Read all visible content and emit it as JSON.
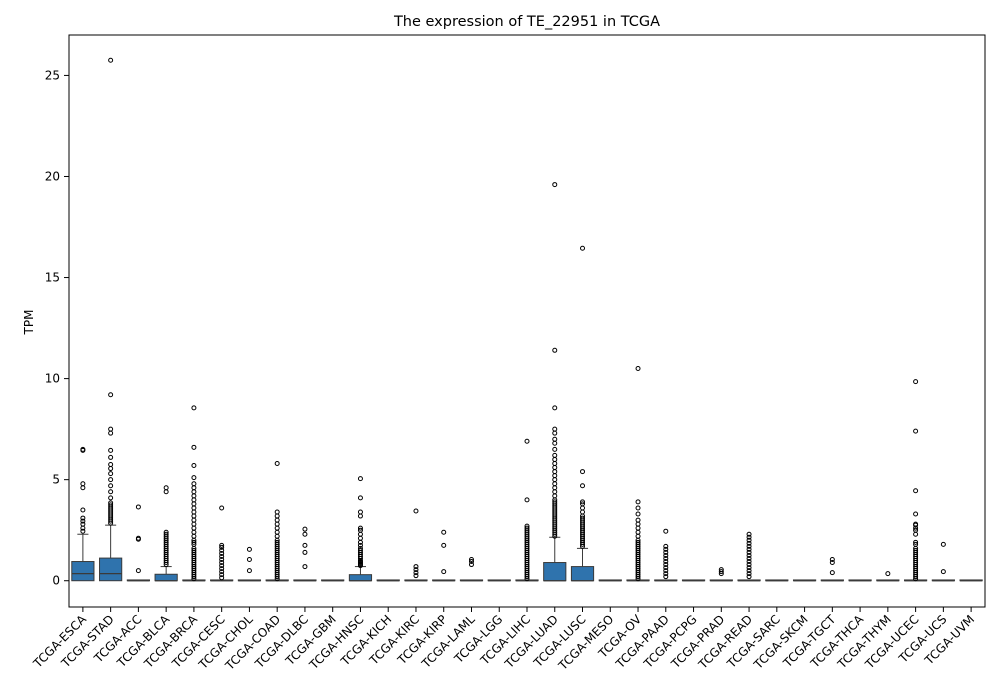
{
  "chart_data": {
    "type": "box",
    "title": "The expression of TE_22951 in TCGA",
    "xlabel": "",
    "ylabel": "TPM",
    "ylim": [
      -1.3,
      27
    ],
    "yticks": [
      0,
      5,
      10,
      15,
      20,
      25
    ],
    "grid": false,
    "legend": "none",
    "box_color": "#2f73ad",
    "edge_color": "#3a3a3a",
    "categories": [
      "TCGA-ESCA",
      "TCGA-STAD",
      "TCGA-ACC",
      "TCGA-BLCA",
      "TCGA-BRCA",
      "TCGA-CESC",
      "TCGA-CHOL",
      "TCGA-COAD",
      "TCGA-DLBC",
      "TCGA-GBM",
      "TCGA-HNSC",
      "TCGA-KICH",
      "TCGA-KIRC",
      "TCGA-KIRP",
      "TCGA-LAML",
      "TCGA-LGG",
      "TCGA-LIHC",
      "TCGA-LUAD",
      "TCGA-LUSC",
      "TCGA-MESO",
      "TCGA-OV",
      "TCGA-PAAD",
      "TCGA-PCPG",
      "TCGA-PRAD",
      "TCGA-READ",
      "TCGA-SARC",
      "TCGA-SKCM",
      "TCGA-TGCT",
      "TCGA-THCA",
      "TCGA-THYM",
      "TCGA-UCEC",
      "TCGA-UCS",
      "TCGA-UVM"
    ],
    "boxes": [
      {
        "q1": 0,
        "median": 0.35,
        "q3": 0.95,
        "whisker_low": 0,
        "whisker_high": 2.3,
        "outliers": [
          2.45,
          2.6,
          2.8,
          2.95,
          3.1,
          3.5,
          4.6,
          4.8,
          6.45,
          6.5
        ]
      },
      {
        "q1": 0,
        "median": 0.35,
        "q3": 1.12,
        "whisker_low": 0,
        "whisker_high": 2.75,
        "outliers": [
          2.85,
          2.95,
          3.05,
          3.15,
          3.25,
          3.35,
          3.45,
          3.55,
          3.65,
          3.75,
          3.85,
          4.1,
          4.4,
          4.7,
          5.0,
          5.3,
          5.55,
          5.75,
          6.1,
          6.45,
          7.3,
          7.5,
          9.2,
          25.75
        ]
      },
      {
        "q1": 0,
        "median": 0,
        "q3": 0,
        "whisker_low": 0,
        "whisker_high": 0,
        "outliers": [
          0.5,
          2.05,
          2.1,
          3.65
        ]
      },
      {
        "q1": 0,
        "median": 0,
        "q3": 0.32,
        "whisker_low": 0,
        "whisker_high": 0.7,
        "outliers": [
          0.8,
          0.9,
          1.0,
          1.1,
          1.2,
          1.3,
          1.4,
          1.5,
          1.6,
          1.7,
          1.8,
          1.9,
          2.0,
          2.1,
          2.2,
          2.3,
          2.4,
          4.4,
          4.6
        ]
      },
      {
        "q1": 0,
        "median": 0,
        "q3": 0,
        "whisker_low": 0,
        "whisker_high": 0,
        "outliers": [
          0.1,
          0.2,
          0.3,
          0.4,
          0.5,
          0.6,
          0.7,
          0.8,
          0.9,
          1.0,
          1.1,
          1.2,
          1.3,
          1.4,
          1.5,
          1.6,
          1.8,
          1.9,
          2.0,
          2.2,
          2.4,
          2.6,
          2.8,
          3.0,
          3.2,
          3.4,
          3.6,
          3.8,
          4.0,
          4.2,
          4.4,
          4.6,
          4.8,
          5.1,
          5.7,
          6.6,
          8.55
        ]
      },
      {
        "q1": 0,
        "median": 0,
        "q3": 0,
        "whisker_low": 0,
        "whisker_high": 0,
        "outliers": [
          0.15,
          0.3,
          0.45,
          0.6,
          0.75,
          0.9,
          1.05,
          1.2,
          1.35,
          1.5,
          1.65,
          1.75,
          3.6
        ]
      },
      {
        "q1": 0,
        "median": 0,
        "q3": 0,
        "whisker_low": 0,
        "whisker_high": 0,
        "outliers": [
          0.5,
          1.05,
          1.55
        ]
      },
      {
        "q1": 0,
        "median": 0,
        "q3": 0,
        "whisker_low": 0,
        "whisker_high": 0,
        "outliers": [
          0.1,
          0.2,
          0.3,
          0.4,
          0.5,
          0.6,
          0.7,
          0.8,
          0.9,
          1.0,
          1.1,
          1.2,
          1.3,
          1.4,
          1.5,
          1.6,
          1.7,
          1.8,
          1.9,
          2.0,
          2.2,
          2.4,
          2.6,
          2.8,
          3.0,
          3.2,
          3.4,
          5.8
        ]
      },
      {
        "q1": 0,
        "median": 0,
        "q3": 0,
        "whisker_low": 0,
        "whisker_high": 0,
        "outliers": [
          0.7,
          1.4,
          1.75,
          2.3,
          2.55
        ]
      },
      {
        "q1": 0,
        "median": 0,
        "q3": 0,
        "whisker_low": 0,
        "whisker_high": 0,
        "outliers": []
      },
      {
        "q1": 0,
        "median": 0,
        "q3": 0.3,
        "whisker_low": 0,
        "whisker_high": 0.7,
        "outliers": [
          0.75,
          0.8,
          0.85,
          0.9,
          0.95,
          1.0,
          1.1,
          1.2,
          1.3,
          1.4,
          1.5,
          1.6,
          1.75,
          1.9,
          2.1,
          2.3,
          2.5,
          2.6,
          3.2,
          3.4,
          4.1,
          5.05
        ]
      },
      {
        "q1": 0,
        "median": 0,
        "q3": 0,
        "whisker_low": 0,
        "whisker_high": 0,
        "outliers": []
      },
      {
        "q1": 0,
        "median": 0,
        "q3": 0,
        "whisker_low": 0,
        "whisker_high": 0,
        "outliers": [
          0.25,
          0.4,
          0.55,
          0.7,
          3.45
        ]
      },
      {
        "q1": 0,
        "median": 0,
        "q3": 0,
        "whisker_low": 0,
        "whisker_high": 0,
        "outliers": [
          0.45,
          1.75,
          2.4
        ]
      },
      {
        "q1": 0,
        "median": 0,
        "q3": 0,
        "whisker_low": 0,
        "whisker_high": 0,
        "outliers": [
          0.8,
          0.95,
          1.05
        ]
      },
      {
        "q1": 0,
        "median": 0,
        "q3": 0,
        "whisker_low": 0,
        "whisker_high": 0,
        "outliers": []
      },
      {
        "q1": 0,
        "median": 0,
        "q3": 0,
        "whisker_low": 0,
        "whisker_high": 0,
        "outliers": [
          0.1,
          0.2,
          0.3,
          0.4,
          0.5,
          0.6,
          0.7,
          0.8,
          0.9,
          1.0,
          1.1,
          1.2,
          1.3,
          1.4,
          1.5,
          1.6,
          1.7,
          1.8,
          1.9,
          2.0,
          2.1,
          2.2,
          2.3,
          2.4,
          2.5,
          2.6,
          2.7,
          4.0,
          6.9
        ]
      },
      {
        "q1": 0,
        "median": 0,
        "q3": 0.9,
        "whisker_low": 0,
        "whisker_high": 2.15,
        "outliers": [
          2.2,
          2.3,
          2.4,
          2.5,
          2.6,
          2.7,
          2.8,
          2.9,
          3.0,
          3.1,
          3.2,
          3.3,
          3.4,
          3.5,
          3.6,
          3.7,
          3.8,
          3.9,
          4.0,
          4.2,
          4.4,
          4.6,
          4.8,
          5.0,
          5.2,
          5.4,
          5.6,
          5.8,
          6.0,
          6.2,
          6.5,
          6.8,
          7.0,
          7.3,
          7.5,
          8.55,
          11.4,
          19.6
        ]
      },
      {
        "q1": 0,
        "median": 0,
        "q3": 0.7,
        "whisker_low": 0,
        "whisker_high": 1.6,
        "outliers": [
          1.7,
          1.8,
          1.9,
          2.0,
          2.1,
          2.2,
          2.3,
          2.4,
          2.5,
          2.6,
          2.7,
          2.8,
          2.9,
          3.0,
          3.1,
          3.2,
          3.4,
          3.6,
          3.8,
          3.9,
          4.7,
          5.4,
          16.45
        ]
      },
      {
        "q1": 0,
        "median": 0,
        "q3": 0,
        "whisker_low": 0,
        "whisker_high": 0,
        "outliers": []
      },
      {
        "q1": 0,
        "median": 0,
        "q3": 0,
        "whisker_low": 0,
        "whisker_high": 0,
        "outliers": [
          0.1,
          0.2,
          0.3,
          0.4,
          0.5,
          0.6,
          0.7,
          0.8,
          0.9,
          1.0,
          1.1,
          1.2,
          1.3,
          1.4,
          1.5,
          1.6,
          1.7,
          1.8,
          1.9,
          2.0,
          2.2,
          2.4,
          2.6,
          2.8,
          3.0,
          3.3,
          3.6,
          3.9,
          10.5
        ]
      },
      {
        "q1": 0,
        "median": 0,
        "q3": 0,
        "whisker_low": 0,
        "whisker_high": 0,
        "outliers": [
          0.2,
          0.35,
          0.5,
          0.65,
          0.8,
          0.95,
          1.1,
          1.25,
          1.4,
          1.55,
          1.7,
          2.45
        ]
      },
      {
        "q1": 0,
        "median": 0,
        "q3": 0,
        "whisker_low": 0,
        "whisker_high": 0,
        "outliers": []
      },
      {
        "q1": 0,
        "median": 0,
        "q3": 0,
        "whisker_low": 0,
        "whisker_high": 0,
        "outliers": [
          0.35,
          0.45,
          0.55
        ]
      },
      {
        "q1": 0,
        "median": 0,
        "q3": 0,
        "whisker_low": 0,
        "whisker_high": 0,
        "outliers": [
          0.2,
          0.35,
          0.5,
          0.65,
          0.8,
          0.95,
          1.1,
          1.25,
          1.4,
          1.55,
          1.7,
          1.85,
          2.0,
          2.15,
          2.3
        ]
      },
      {
        "q1": 0,
        "median": 0,
        "q3": 0,
        "whisker_low": 0,
        "whisker_high": 0,
        "outliers": []
      },
      {
        "q1": 0,
        "median": 0,
        "q3": 0,
        "whisker_low": 0,
        "whisker_high": 0,
        "outliers": []
      },
      {
        "q1": 0,
        "median": 0,
        "q3": 0,
        "whisker_low": 0,
        "whisker_high": 0,
        "outliers": [
          0.4,
          0.9,
          1.05
        ]
      },
      {
        "q1": 0,
        "median": 0,
        "q3": 0,
        "whisker_low": 0,
        "whisker_high": 0,
        "outliers": []
      },
      {
        "q1": 0,
        "median": 0,
        "q3": 0,
        "whisker_low": 0,
        "whisker_high": 0,
        "outliers": [
          0.35
        ]
      },
      {
        "q1": 0,
        "median": 0,
        "q3": 0,
        "whisker_low": 0,
        "whisker_high": 0,
        "outliers": [
          0.1,
          0.2,
          0.3,
          0.4,
          0.5,
          0.6,
          0.7,
          0.8,
          0.9,
          1.0,
          1.1,
          1.2,
          1.3,
          1.4,
          1.5,
          1.6,
          1.8,
          1.9,
          2.3,
          2.5,
          2.6,
          2.75,
          2.8,
          3.3,
          4.45,
          7.4,
          9.85
        ]
      },
      {
        "q1": 0,
        "median": 0,
        "q3": 0,
        "whisker_low": 0,
        "whisker_high": 0,
        "outliers": [
          0.45,
          1.8
        ]
      },
      {
        "q1": 0,
        "median": 0,
        "q3": 0,
        "whisker_low": 0,
        "whisker_high": 0,
        "outliers": []
      }
    ]
  }
}
